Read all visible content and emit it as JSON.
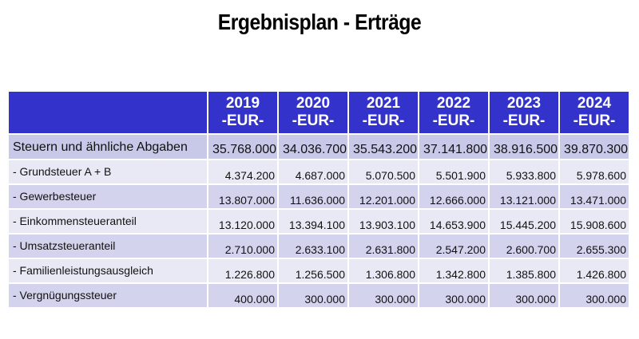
{
  "title": "Ergebnisplan - Erträge",
  "table": {
    "years": [
      {
        "year": "2019",
        "unit": "-EUR-"
      },
      {
        "year": "2020",
        "unit": "-EUR-"
      },
      {
        "year": "2021",
        "unit": "-EUR-"
      },
      {
        "year": "2022",
        "unit": "-EUR-"
      },
      {
        "year": "2023",
        "unit": "-EUR-"
      },
      {
        "year": "2024",
        "unit": "-EUR-"
      }
    ],
    "rows": [
      {
        "label": "Steuern und ähnliche Abgaben",
        "values": [
          "35.768.000",
          "34.036.700",
          "35.543.200",
          "37.141.800",
          "38.916.500",
          "39.870.300"
        ]
      },
      {
        "label": "- Grundsteuer A + B",
        "values": [
          "4.374.200",
          "4.687.000",
          "5.070.500",
          "5.501.900",
          "5.933.800",
          "5.978.600"
        ]
      },
      {
        "label": "- Gewerbesteuer",
        "values": [
          "13.807.000",
          "11.636.000",
          "12.201.000",
          "12.666.000",
          "13.121.000",
          "13.471.000"
        ]
      },
      {
        "label": "- Einkommensteueranteil",
        "values": [
          "13.120.000",
          "13.394.100",
          "13.903.100",
          "14.653.900",
          "15.445.200",
          "15.908.600"
        ]
      },
      {
        "label": "- Umsatzsteueranteil",
        "values": [
          "2.710.000",
          "2.633.100",
          "2.631.800",
          "2.547.200",
          "2.600.700",
          "2.655.300"
        ]
      },
      {
        "label": "- Familienleistungsausgleich",
        "values": [
          "1.226.800",
          "1.256.500",
          "1.306.800",
          "1.342.800",
          "1.385.800",
          "1.426.800"
        ]
      },
      {
        "label": "- Vergnügungssteuer",
        "values": [
          "400.000",
          "300.000",
          "300.000",
          "300.000",
          "300.000",
          "300.000"
        ]
      }
    ]
  },
  "colors": {
    "header_bg": "#3333cc",
    "header_text": "#ffffff",
    "total_row_bg": "#c8c8e8",
    "row_light": "#e9e9f5",
    "row_dark": "#d3d3ee"
  }
}
